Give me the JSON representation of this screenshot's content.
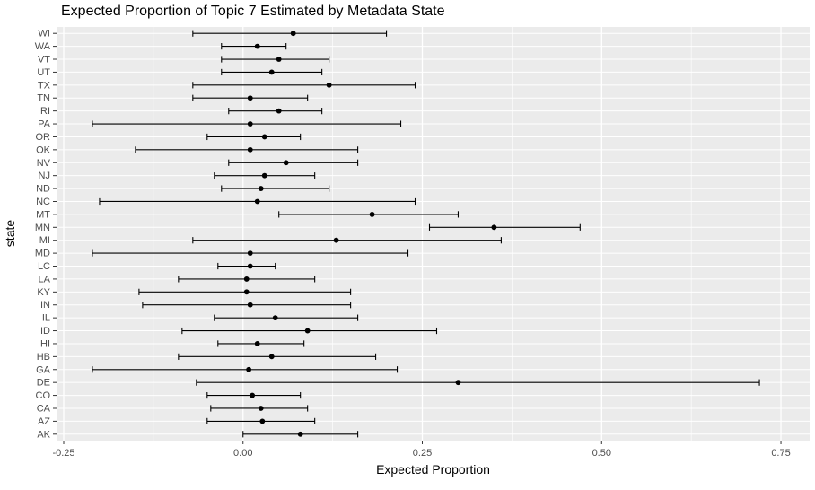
{
  "title": "Expected Proportion of Topic 7 Estimated by Metadata State",
  "axes": {
    "x_label": "Expected Proportion",
    "y_label": "state"
  },
  "chart_data": {
    "type": "scatter",
    "subtype": "point-estimates-with-horizontal-errorbars",
    "title": "Expected Proportion of Topic 7 Estimated by Metadata State",
    "xlabel": "Expected Proportion",
    "ylabel": "state",
    "xlim": [
      -0.26,
      0.79
    ],
    "x_major_ticks": [
      -0.25,
      0.0,
      0.25,
      0.5,
      0.75
    ],
    "x_tick_labels": [
      "-0.25",
      "0.00",
      "0.25",
      "0.50",
      "0.75"
    ],
    "x_minor_ticks": [
      -0.125,
      0.125,
      0.375,
      0.625
    ],
    "grid": true,
    "legend": "none",
    "categories": [
      "WI",
      "WA",
      "VT",
      "UT",
      "TX",
      "TN",
      "RI",
      "PA",
      "OR",
      "OK",
      "NV",
      "NJ",
      "ND",
      "NC",
      "MT",
      "MN",
      "MI",
      "MD",
      "LC",
      "LA",
      "KY",
      "IN",
      "IL",
      "ID",
      "HI",
      "HB",
      "GA",
      "DE",
      "CO",
      "CA",
      "AZ",
      "AK"
    ],
    "series": [
      {
        "name": "expected_proportion",
        "points": [
          {
            "state": "WI",
            "est": 0.07,
            "lo": -0.07,
            "hi": 0.2
          },
          {
            "state": "WA",
            "est": 0.02,
            "lo": -0.03,
            "hi": 0.06
          },
          {
            "state": "VT",
            "est": 0.05,
            "lo": -0.03,
            "hi": 0.12
          },
          {
            "state": "UT",
            "est": 0.04,
            "lo": -0.03,
            "hi": 0.11
          },
          {
            "state": "TX",
            "est": 0.12,
            "lo": -0.07,
            "hi": 0.24
          },
          {
            "state": "TN",
            "est": 0.01,
            "lo": -0.07,
            "hi": 0.09
          },
          {
            "state": "RI",
            "est": 0.05,
            "lo": -0.02,
            "hi": 0.11
          },
          {
            "state": "PA",
            "est": 0.01,
            "lo": -0.21,
            "hi": 0.22
          },
          {
            "state": "OR",
            "est": 0.03,
            "lo": -0.05,
            "hi": 0.08
          },
          {
            "state": "OK",
            "est": 0.01,
            "lo": -0.15,
            "hi": 0.16
          },
          {
            "state": "NV",
            "est": 0.06,
            "lo": -0.02,
            "hi": 0.16
          },
          {
            "state": "NJ",
            "est": 0.03,
            "lo": -0.04,
            "hi": 0.1
          },
          {
            "state": "ND",
            "est": 0.025,
            "lo": -0.03,
            "hi": 0.12
          },
          {
            "state": "NC",
            "est": 0.02,
            "lo": -0.2,
            "hi": 0.24
          },
          {
            "state": "MT",
            "est": 0.18,
            "lo": 0.05,
            "hi": 0.3
          },
          {
            "state": "MN",
            "est": 0.35,
            "lo": 0.26,
            "hi": 0.47
          },
          {
            "state": "MI",
            "est": 0.13,
            "lo": -0.07,
            "hi": 0.36
          },
          {
            "state": "MD",
            "est": 0.01,
            "lo": -0.21,
            "hi": 0.23
          },
          {
            "state": "LC",
            "est": 0.01,
            "lo": -0.035,
            "hi": 0.045
          },
          {
            "state": "LA",
            "est": 0.005,
            "lo": -0.09,
            "hi": 0.1
          },
          {
            "state": "KY",
            "est": 0.005,
            "lo": -0.145,
            "hi": 0.15
          },
          {
            "state": "IN",
            "est": 0.01,
            "lo": -0.14,
            "hi": 0.15
          },
          {
            "state": "IL",
            "est": 0.045,
            "lo": -0.04,
            "hi": 0.16
          },
          {
            "state": "ID",
            "est": 0.09,
            "lo": -0.085,
            "hi": 0.27
          },
          {
            "state": "HI",
            "est": 0.02,
            "lo": -0.035,
            "hi": 0.085
          },
          {
            "state": "HB",
            "est": 0.04,
            "lo": -0.09,
            "hi": 0.185
          },
          {
            "state": "GA",
            "est": 0.008,
            "lo": -0.21,
            "hi": 0.215
          },
          {
            "state": "DE",
            "est": 0.3,
            "lo": -0.065,
            "hi": 0.72
          },
          {
            "state": "CO",
            "est": 0.013,
            "lo": -0.05,
            "hi": 0.08
          },
          {
            "state": "CA",
            "est": 0.025,
            "lo": -0.045,
            "hi": 0.09
          },
          {
            "state": "AZ",
            "est": 0.027,
            "lo": -0.05,
            "hi": 0.1
          },
          {
            "state": "AK",
            "est": 0.08,
            "lo": 0.0,
            "hi": 0.16
          }
        ]
      }
    ],
    "style": {
      "panel_bg": "#EBEBEB",
      "grid_major": "#FFFFFF",
      "grid_minor": "#FFFFFF",
      "point_color": "#000000",
      "errorbar_color": "#000000",
      "tick_color": "#333333",
      "tick_label_color": "#4D4D4D",
      "axis_title_color": "#000000",
      "background": "#FFFFFF"
    }
  }
}
